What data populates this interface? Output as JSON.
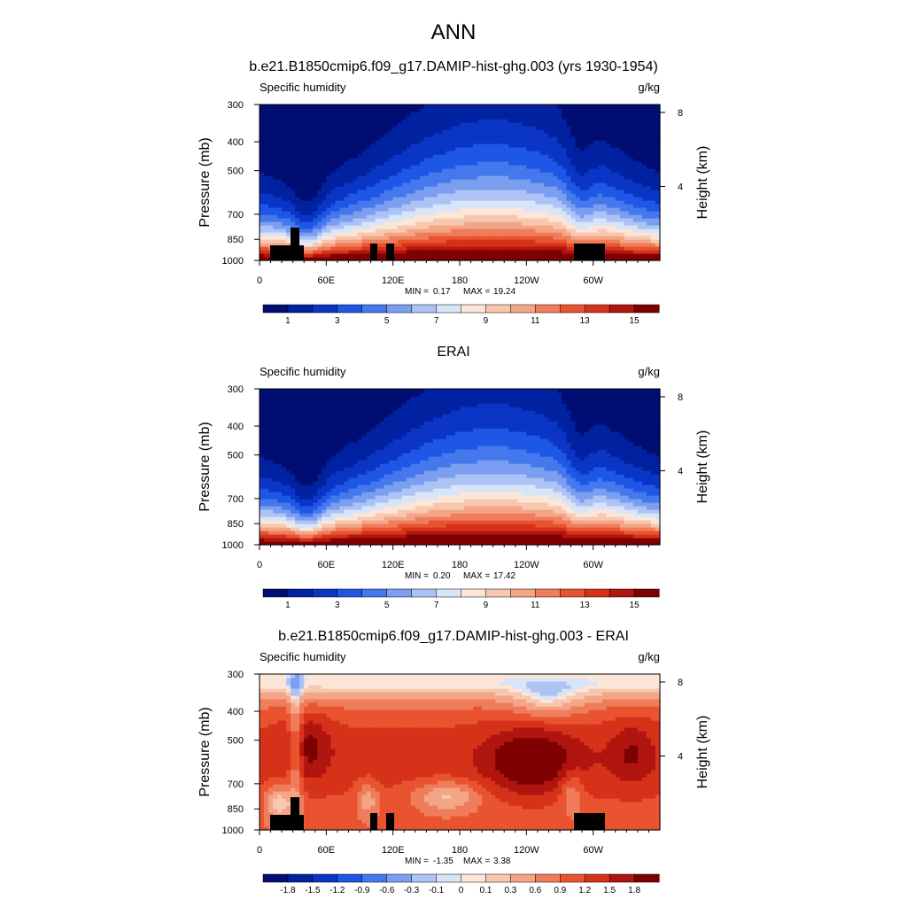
{
  "figure": {
    "title": "ANN"
  },
  "chart_data": [
    {
      "type": "heatmap",
      "title": "b.e21.B1850cmip6.f09_g17.DAMIP-hist-ghg.003 (yrs 1930-1954)",
      "variable": "Specific humidity",
      "units": "g/kg",
      "ylabel": "Pressure (mb)",
      "y2label": "Height (km)",
      "x_ticks": [
        "0",
        "60E",
        "120E",
        "180",
        "120W",
        "60W"
      ],
      "y_ticks": [
        "300",
        "400",
        "500",
        "700",
        "850",
        "1000"
      ],
      "y2_ticks": [
        "8",
        "4"
      ],
      "ylim": [
        1000,
        300
      ],
      "stats": {
        "min_label": "MIN =",
        "min": "0.17",
        "max_label": "MAX =",
        "max": "19.24"
      },
      "colorbar_labels": [
        "1",
        "3",
        "5",
        "7",
        "9",
        "11",
        "13",
        "15"
      ],
      "colorbar_colors": [
        "#000d72",
        "#0022a0",
        "#0a35c5",
        "#1e56e6",
        "#4478ec",
        "#7b9ef0",
        "#aec3f5",
        "#d8e4f8",
        "#fbe6d8",
        "#f7c7b0",
        "#f3a586",
        "#ef7c5b",
        "#e9532f",
        "#d6321a",
        "#b0150f",
        "#7e0000"
      ],
      "field": "absolute"
    },
    {
      "type": "heatmap",
      "title": "ERAI",
      "variable": "Specific humidity",
      "units": "g/kg",
      "ylabel": "Pressure (mb)",
      "y2label": "Height (km)",
      "x_ticks": [
        "0",
        "60E",
        "120E",
        "180",
        "120W",
        "60W"
      ],
      "y_ticks": [
        "300",
        "400",
        "500",
        "700",
        "850",
        "1000"
      ],
      "y2_ticks": [
        "8",
        "4"
      ],
      "ylim": [
        1000,
        300
      ],
      "stats": {
        "min_label": "MIN =",
        "min": "0.20",
        "max_label": "MAX =",
        "max": "17.42"
      },
      "colorbar_labels": [
        "1",
        "3",
        "5",
        "7",
        "9",
        "11",
        "13",
        "15"
      ],
      "colorbar_colors": [
        "#000d72",
        "#0022a0",
        "#0a35c5",
        "#1e56e6",
        "#4478ec",
        "#7b9ef0",
        "#aec3f5",
        "#d8e4f8",
        "#fbe6d8",
        "#f7c7b0",
        "#f3a586",
        "#ef7c5b",
        "#e9532f",
        "#d6321a",
        "#b0150f",
        "#7e0000"
      ],
      "field": "absolute"
    },
    {
      "type": "heatmap",
      "title": "b.e21.B1850cmip6.f09_g17.DAMIP-hist-ghg.003 - ERAI",
      "variable": "Specific humidity",
      "units": "g/kg",
      "ylabel": "Pressure (mb)",
      "y2label": "Height (km)",
      "x_ticks": [
        "0",
        "60E",
        "120E",
        "180",
        "120W",
        "60W"
      ],
      "y_ticks": [
        "300",
        "400",
        "500",
        "700",
        "850",
        "1000"
      ],
      "y2_ticks": [
        "8",
        "4"
      ],
      "ylim": [
        1000,
        300
      ],
      "stats": {
        "min_label": "MIN =",
        "min": "-1.35",
        "max_label": "MAX =",
        "max": "3.38"
      },
      "colorbar_labels": [
        "-1.8",
        "-1.5",
        "-1.2",
        "-0.9",
        "-0.6",
        "-0.3",
        "-0.1",
        "0",
        "0.1",
        "0.3",
        "0.6",
        "0.9",
        "1.2",
        "1.5",
        "1.8"
      ],
      "colorbar_colors": [
        "#000d72",
        "#0022a0",
        "#0a35c5",
        "#1e56e6",
        "#4478ec",
        "#7b9ef0",
        "#aec3f5",
        "#d8e4f8",
        "#fbe6d8",
        "#f7c7b0",
        "#f3a586",
        "#ef7c5b",
        "#e9532f",
        "#d6321a",
        "#b0150f",
        "#7e0000"
      ],
      "field": "difference"
    }
  ]
}
